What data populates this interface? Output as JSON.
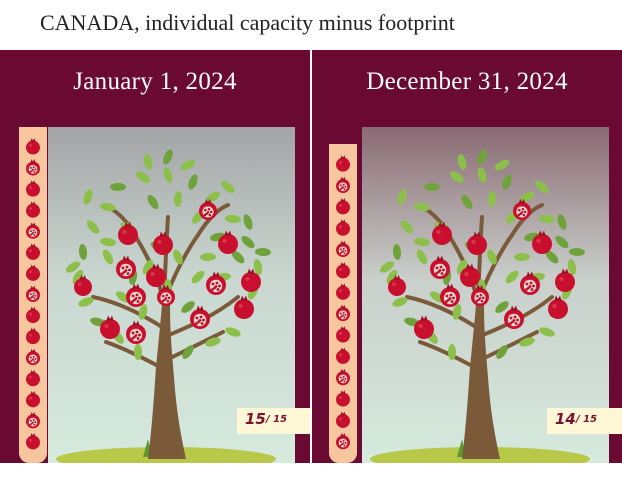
{
  "header": {
    "title": "CANADA, individual capacity minus footprint"
  },
  "panels": [
    {
      "date": "January 1, 2024",
      "current": "15",
      "total": "/ 15",
      "fruits_remaining": 15,
      "fruits_total": 15
    },
    {
      "date": "December 31, 2024",
      "current": "14",
      "total": "/ 15",
      "fruits_remaining": 14,
      "fruits_total": 15
    }
  ],
  "bar": {
    "count": 15
  },
  "icons": {
    "fruit": "pomegranate-icon",
    "tree": "pomegranate-tree"
  },
  "colors": {
    "frame": "#6a0a33",
    "bar": "#f7c69f",
    "fruit": "#c8102e",
    "leaf": "#8cc04a",
    "trunk": "#7b5a3a",
    "counter_bg": "#fff7d6",
    "counter_text": "#7a1232"
  }
}
